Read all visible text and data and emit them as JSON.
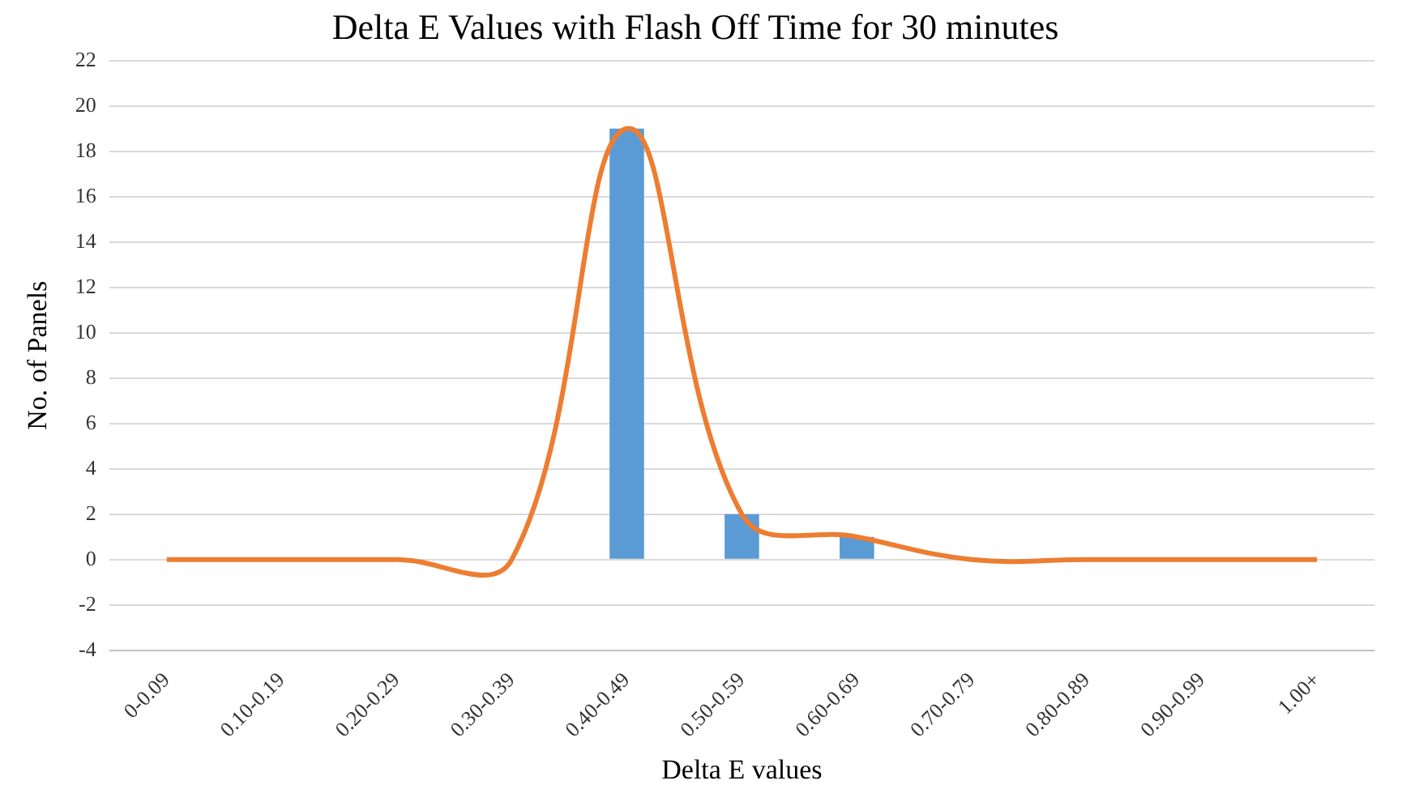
{
  "chart_data": {
    "type": "bar",
    "title": "Delta E Values with Flash Off Time for 30 minutes",
    "xlabel": "Delta E values",
    "ylabel": "No. of Panels",
    "categories": [
      "0-0.09",
      "0.10-0.19",
      "0.20-0.29",
      "0.30-0.39",
      "0.40-0.49",
      "0.50-0.59",
      "0.60-0.69",
      "0.70-0.79",
      "0.80-0.89",
      "0.90-0.99",
      "1.00+"
    ],
    "series": [
      {
        "color": "#5b9bd5",
        "values": [
          0,
          0,
          0,
          0,
          19,
          2,
          1,
          0,
          0,
          0,
          0
        ]
      },
      {
        "type": "line",
        "color": "#ed7d31",
        "values": [
          0,
          0,
          0,
          0,
          19,
          2,
          1,
          0,
          0,
          0,
          0
        ]
      }
    ],
    "ylim": [
      -4,
      22
    ],
    "yticks": [
      -4,
      -2,
      0,
      2,
      4,
      6,
      8,
      10,
      12,
      14,
      16,
      18,
      20,
      22
    ],
    "grid": "y",
    "legend": false,
    "marker": "none"
  }
}
